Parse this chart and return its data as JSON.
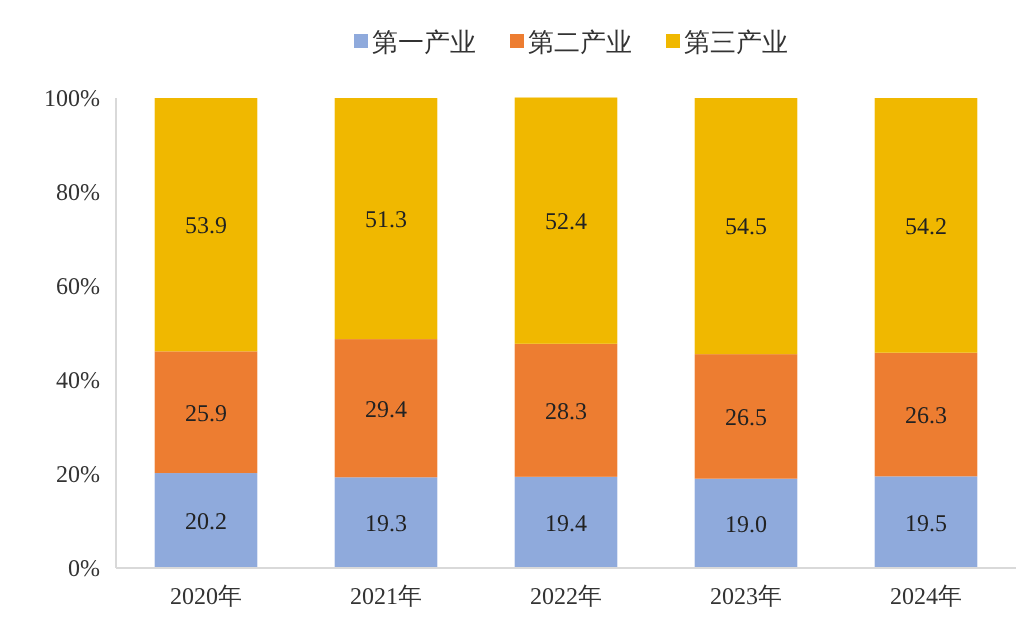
{
  "chart_data": {
    "type": "bar",
    "stacked": true,
    "categories": [
      "2020年",
      "2021年",
      "2022年",
      "2023年",
      "2024年"
    ],
    "series": [
      {
        "name": "第一产业",
        "color": "#8faadc",
        "values": [
          20.2,
          19.3,
          19.4,
          19.0,
          19.5
        ],
        "value_labels": [
          "20.2",
          "19.3",
          "19.4",
          "19.0",
          "19.5"
        ]
      },
      {
        "name": "第二产业",
        "color": "#ed7d31",
        "values": [
          25.9,
          29.4,
          28.3,
          26.5,
          26.3
        ],
        "value_labels": [
          "25.9",
          "29.4",
          "28.3",
          "26.5",
          "26.3"
        ]
      },
      {
        "name": "第三产业",
        "color": "#f0b800",
        "values": [
          53.9,
          51.3,
          52.4,
          54.5,
          54.2
        ],
        "value_labels": [
          "53.9",
          "51.3",
          "52.4",
          "54.5",
          "54.2"
        ]
      }
    ],
    "ylim": [
      0,
      100
    ],
    "yticks": [
      {
        "value": 0,
        "label": "0%"
      },
      {
        "value": 20,
        "label": "20%"
      },
      {
        "value": 40,
        "label": "40%"
      },
      {
        "value": 60,
        "label": "60%"
      },
      {
        "value": 80,
        "label": "80%"
      },
      {
        "value": 100,
        "label": "100%"
      }
    ],
    "legend": "top"
  }
}
